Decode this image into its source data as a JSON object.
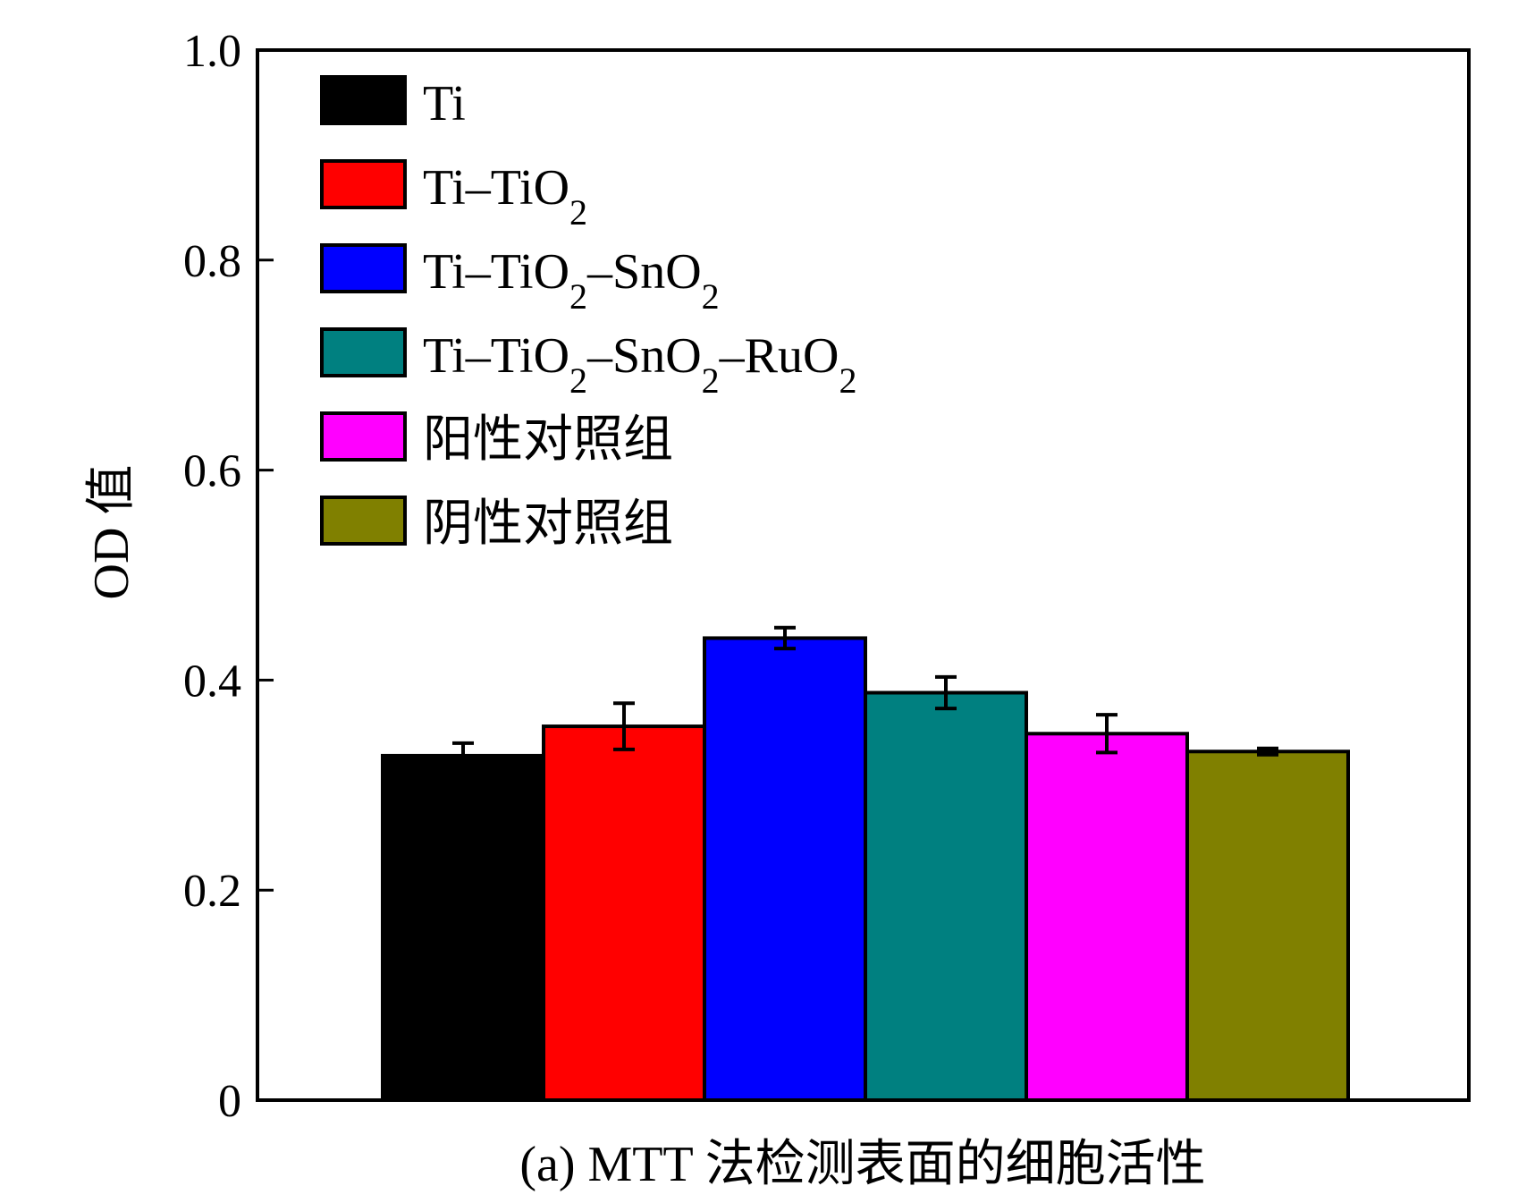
{
  "chart_data": {
    "type": "bar",
    "ylabel": "OD 值",
    "xlabel": "(a) MTT 法检测表面的细胞活性",
    "ylim": [
      0,
      1.0
    ],
    "yticks": [
      0,
      0.2,
      0.4,
      0.6,
      0.8,
      1.0
    ],
    "ytick_labels": [
      "0",
      "0.2",
      "0.4",
      "0.6",
      "0.8",
      "1.0"
    ],
    "grid": false,
    "legend_position": "top-left",
    "series": [
      {
        "name": "Ti",
        "legend_parts": [
          [
            "Ti",
            ""
          ]
        ],
        "value": 0.328,
        "error": 0.012,
        "color": "#000000"
      },
      {
        "name": "Ti–TiO2",
        "legend_parts": [
          [
            "Ti–TiO",
            ""
          ],
          [
            "2",
            "sub"
          ]
        ],
        "value": 0.356,
        "error": 0.022,
        "color": "#ff0000"
      },
      {
        "name": "Ti–TiO2–SnO2",
        "legend_parts": [
          [
            "Ti–TiO",
            ""
          ],
          [
            "2",
            "sub"
          ],
          [
            "–SnO",
            ""
          ],
          [
            "2",
            "sub"
          ]
        ],
        "value": 0.44,
        "error": 0.01,
        "color": "#0000ff"
      },
      {
        "name": "Ti–TiO2–SnO2–RuO2",
        "legend_parts": [
          [
            "Ti–TiO",
            ""
          ],
          [
            "2",
            "sub"
          ],
          [
            "–SnO",
            ""
          ],
          [
            "2",
            "sub"
          ],
          [
            "–RuO",
            ""
          ],
          [
            "2",
            "sub"
          ]
        ],
        "value": 0.388,
        "error": 0.015,
        "color": "#008080"
      },
      {
        "name": "阳性对照组",
        "legend_parts": [
          [
            "阳性对照组",
            ""
          ]
        ],
        "value": 0.349,
        "error": 0.018,
        "color": "#ff00ff"
      },
      {
        "name": "阴性对照组",
        "legend_parts": [
          [
            "阴性对照组",
            ""
          ]
        ],
        "value": 0.332,
        "error": 0.003,
        "color": "#808000"
      }
    ]
  }
}
